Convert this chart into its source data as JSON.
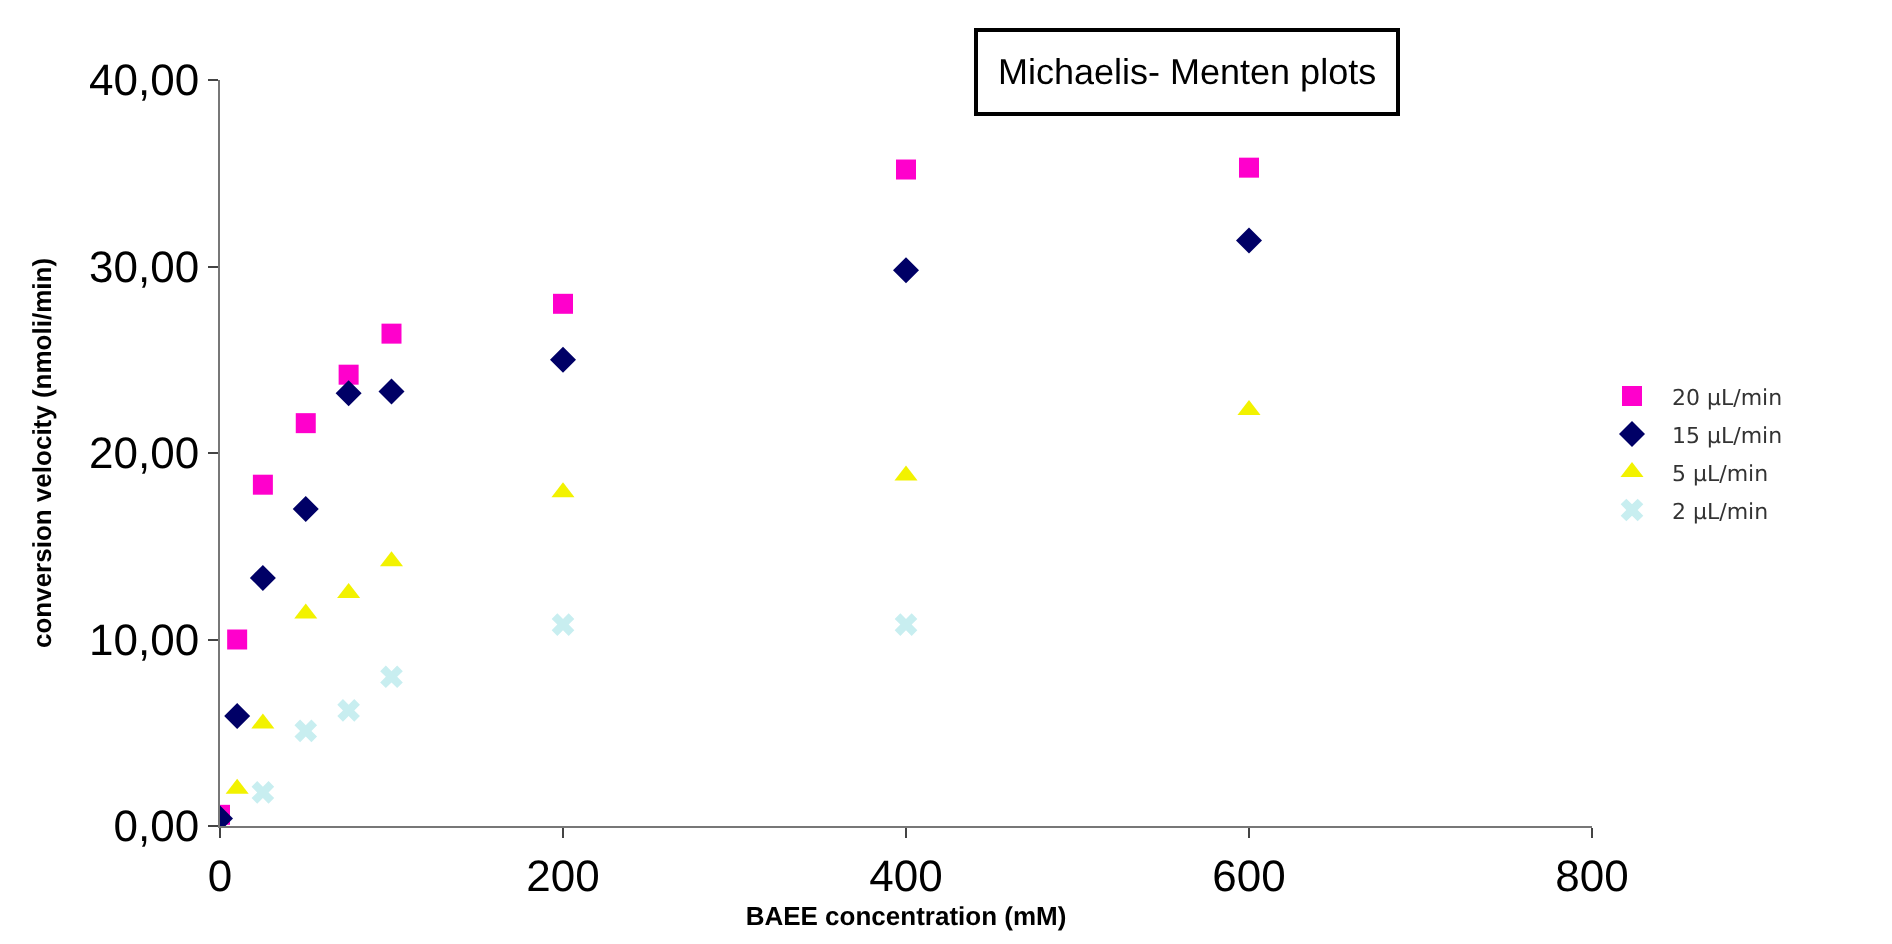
{
  "chart_data": {
    "type": "scatter",
    "title": "Michaelis- Menten plots",
    "xlabel": "BAEE concentration (mM)",
    "ylabel": "conversion velocity (nmoli/min)",
    "x": [
      0,
      10,
      25,
      50,
      75,
      100,
      200,
      400,
      600
    ],
    "series": [
      {
        "name": "20 µL/min",
        "color": "#ff00cc",
        "marker": "square",
        "values": [
          0.6,
          10.0,
          18.3,
          21.6,
          24.2,
          26.4,
          28.0,
          35.2,
          35.3
        ]
      },
      {
        "name": "15 µL/min",
        "color": "#000066",
        "marker": "diamond",
        "values": [
          0.4,
          5.9,
          13.3,
          17.0,
          23.2,
          23.3,
          25.0,
          29.8,
          31.4
        ]
      },
      {
        "name": "5 µL/min",
        "color": "#f2f200",
        "marker": "triangle",
        "values": [
          null,
          2.0,
          5.5,
          11.4,
          12.5,
          14.2,
          17.9,
          18.8,
          22.3
        ]
      },
      {
        "name": "2 µL/min",
        "color": "#c8eef0",
        "marker": "cross",
        "values": [
          null,
          null,
          1.8,
          5.1,
          6.2,
          8.0,
          10.8,
          10.8,
          null
        ]
      }
    ],
    "xlim": [
      0,
      800
    ],
    "xticks": [
      0,
      200,
      400,
      600,
      800
    ],
    "ylim": [
      0,
      40
    ],
    "yticks": [
      {
        "value": 0,
        "label": "0,00"
      },
      {
        "value": 10,
        "label": "10,00"
      },
      {
        "value": 20,
        "label": "20,00"
      },
      {
        "value": 30,
        "label": "30,00"
      },
      {
        "value": 40,
        "label": "40,00"
      }
    ],
    "legend": "right"
  }
}
